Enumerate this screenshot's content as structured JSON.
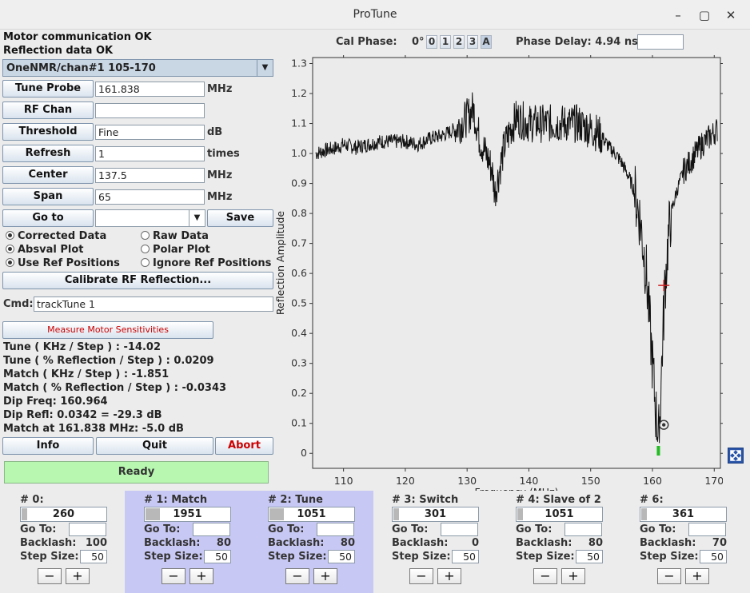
{
  "window": {
    "title": "ProTune"
  },
  "status": {
    "motor": "Motor communication OK",
    "reflection": "Reflection data OK"
  },
  "probe_select": {
    "value": "OneNMR/chan#1  105-170"
  },
  "params": [
    {
      "label": "Tune Probe",
      "value": "161.838",
      "unit": "MHz"
    },
    {
      "label": "RF Chan",
      "value": "",
      "unit": ""
    },
    {
      "label": "Threshold",
      "value": "Fine",
      "unit": "dB"
    },
    {
      "label": "Refresh",
      "value": "1",
      "unit": "times"
    },
    {
      "label": "Center",
      "value": "137.5",
      "unit": "MHz"
    },
    {
      "label": "Span",
      "value": "65",
      "unit": "MHz"
    }
  ],
  "goto": {
    "label": "Go to",
    "value": "",
    "save_label": "Save"
  },
  "options": {
    "corrected_data": "Corrected Data",
    "raw_data": "Raw Data",
    "absval_plot": "Absval Plot",
    "polar_plot": "Polar Plot",
    "use_ref_positions": "Use Ref Positions",
    "ignore_ref_positions": "Ignore Ref Positions"
  },
  "calibrate_label": "Calibrate RF Reflection...",
  "cmd": {
    "label": "Cmd:",
    "value": "trackTune 1"
  },
  "measure_label": "Measure Motor Sensitivities",
  "sensitivities": {
    "tune_khz": "Tune ( KHz / Step ) :  -14.02",
    "tune_pct": "Tune ( % Reflection / Step ) :  0.0209",
    "match_khz": "Match ( KHz / Step ) :  -1.851",
    "match_pct": "Match ( % Reflection / Step ) :  -0.0343"
  },
  "dip": {
    "freq": "Dip Freq: 160.964",
    "refl": "Dip Refl: 0.0342 = -29.3 dB",
    "match": "Match at 161.838 MHz: -5.0 dB"
  },
  "actions": {
    "info": "Info",
    "quit": "Quit",
    "abort": "Abort"
  },
  "ready": "Ready",
  "cal_phase": {
    "label": "Cal Phase:",
    "zero": "0°",
    "buttons": [
      "0",
      "1",
      "2",
      "3",
      "A"
    ]
  },
  "phase_delay": {
    "label": "Phase Delay: 4.94 ns",
    "value": ""
  },
  "colors": {
    "abort": "#cc0000",
    "measure": "#cc0000",
    "ready_bg": "#b7f7b0",
    "trace": "#111111",
    "plot_bg": "#ebebeb",
    "motor_highlight": "#c8c8f4",
    "dip_marker": "#22bb22"
  },
  "chart_data": {
    "type": "line",
    "title": "",
    "xlabel": "Frequency (MHz)",
    "ylabel": "Reflection Amplitude",
    "xlim": [
      105,
      171
    ],
    "ylim": [
      -0.05,
      1.32
    ],
    "xticks": [
      110,
      120,
      130,
      140,
      150,
      160,
      170
    ],
    "yticks": [
      0,
      0.1,
      0.2,
      0.3,
      0.4,
      0.5,
      0.6,
      0.7,
      0.8,
      0.9,
      1.0,
      1.1,
      1.2,
      1.3
    ],
    "grid": false,
    "series": [
      {
        "x": [
          105.5,
          107,
          109,
          110,
          112,
          114,
          116,
          118,
          120,
          122,
          124,
          126,
          128,
          130,
          131,
          132,
          133,
          134,
          134.5,
          135,
          136,
          137,
          138,
          140,
          142,
          144,
          146,
          148,
          150,
          151,
          152,
          153,
          154,
          155,
          156,
          157,
          158,
          159,
          159.5,
          160,
          160.5,
          160.964,
          161.2,
          161.5,
          162,
          162.5,
          163,
          164,
          165,
          166,
          167,
          168,
          169,
          170,
          170.5
        ],
        "y": [
          1.0,
          1.01,
          1.02,
          1.03,
          1.02,
          1.03,
          1.04,
          1.04,
          1.04,
          1.03,
          1.05,
          1.06,
          1.08,
          1.12,
          1.15,
          1.05,
          1.0,
          0.95,
          0.87,
          0.92,
          1.02,
          1.08,
          1.12,
          1.1,
          1.1,
          1.1,
          1.1,
          1.1,
          1.08,
          1.07,
          1.05,
          1.02,
          1.0,
          0.97,
          0.93,
          0.88,
          0.78,
          0.6,
          0.45,
          0.3,
          0.15,
          0.0342,
          0.12,
          0.3,
          0.55,
          0.7,
          0.8,
          0.88,
          0.94,
          0.97,
          1.0,
          1.03,
          1.05,
          1.07,
          1.08
        ]
      }
    ],
    "annotations": [
      {
        "type": "cross",
        "x": 161.838,
        "y": 0.56,
        "color": "#cc2222"
      },
      {
        "type": "circle-target",
        "x": 161.838,
        "y": 0.095
      },
      {
        "type": "dip-marker",
        "x": 160.964,
        "color": "#22bb22"
      }
    ]
  },
  "motors": [
    {
      "title": "# 0:",
      "value": "260",
      "goto": "",
      "backlash": "100",
      "stepsize": "50"
    },
    {
      "title": "# 1: Match",
      "value": "1951",
      "goto": "",
      "backlash": "80",
      "stepsize": "50"
    },
    {
      "title": "# 2: Tune",
      "value": "1051",
      "goto": "",
      "backlash": "80",
      "stepsize": "50"
    },
    {
      "title": "# 3: Switch",
      "value": "301",
      "goto": "",
      "backlash": "0",
      "stepsize": "50"
    },
    {
      "title": "# 4: Slave of 2",
      "value": "1051",
      "goto": "",
      "backlash": "80",
      "stepsize": "50"
    },
    {
      "title": "# 6:",
      "value": "361",
      "goto": "",
      "backlash": "70",
      "stepsize": "50"
    }
  ],
  "motor_labels": {
    "goto": "Go To:",
    "backlash": "Backlash:",
    "stepsize": "Step Size:",
    "minus": "−",
    "plus": "+"
  }
}
